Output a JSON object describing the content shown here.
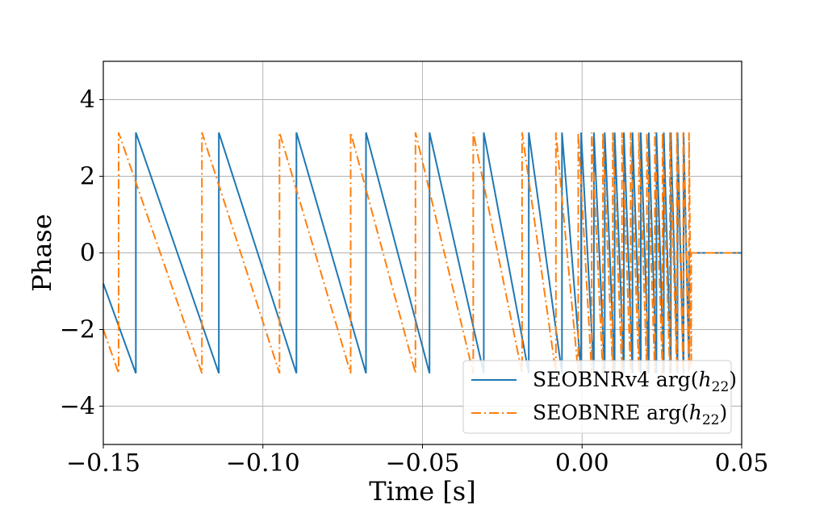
{
  "chart_data": {
    "type": "line",
    "xlabel": "Time [s]",
    "ylabel": "Phase",
    "xlim": [
      -0.15,
      0.05
    ],
    "ylim": [
      -5,
      5
    ],
    "xticks": [
      -0.15,
      -0.1,
      -0.05,
      0.0,
      0.05
    ],
    "xtick_labels": [
      "−0.15",
      "−0.10",
      "−0.05",
      "0.00",
      "0.05"
    ],
    "yticks": [
      -4,
      -2,
      0,
      2,
      4
    ],
    "ytick_labels": [
      "−4",
      "−2",
      "0",
      "2",
      "4"
    ],
    "grid": true,
    "legend_position": "lower-right",
    "series": [
      {
        "name": "SEOBNRv4 arg(h22)",
        "legend_main": "SEOBNRv4 arg(",
        "legend_sub": "22",
        "color": "#1f77b4",
        "style": "solid",
        "wrap_times": [
          -0.1398,
          -0.1138,
          -0.0895,
          -0.0677,
          -0.0478,
          -0.0308,
          -0.0167,
          -0.0063,
          -0.0003,
          0.0037,
          0.0071,
          0.0102,
          0.0131,
          0.0158,
          0.0184,
          0.0209,
          0.0233,
          0.0256,
          0.0278,
          0.0299,
          0.0318
        ],
        "start_phase": -0.8,
        "end_time": 0.0335,
        "end_phase": -3.0,
        "after_value": 0
      },
      {
        "name": "SEOBNRE arg(h22)",
        "legend_main": "SEOBNRE arg(",
        "legend_sub": "22",
        "color": "#ff7f0e",
        "style": "dashdot",
        "wrap_times": [
          -0.1452,
          -0.1191,
          -0.0948,
          -0.0725,
          -0.0522,
          -0.0341,
          -0.0188,
          -0.0082,
          -0.0012,
          0.003,
          0.0065,
          0.0096,
          0.0125,
          0.0152,
          0.0178,
          0.0203,
          0.0228,
          0.0252,
          0.0275,
          0.0297,
          0.0317,
          0.0335
        ],
        "start_phase": -2.0,
        "end_time": 0.0342,
        "end_phase": -3.0,
        "after_value": 0
      }
    ]
  }
}
